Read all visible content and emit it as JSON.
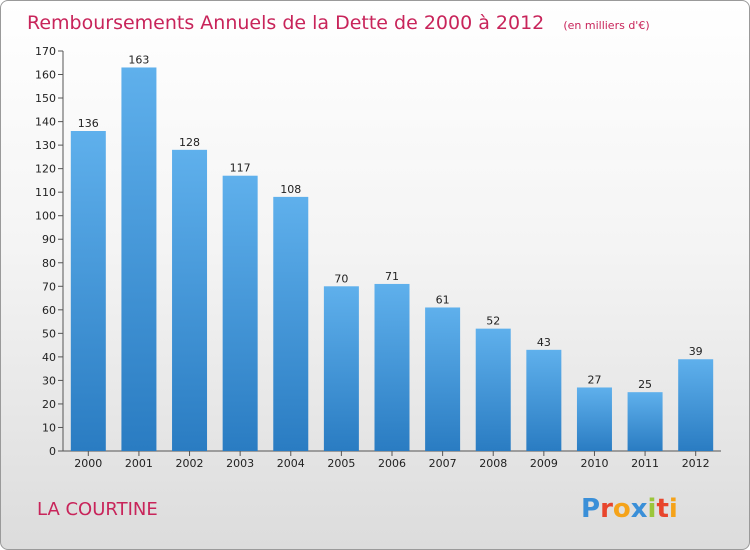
{
  "chart_data": {
    "type": "bar",
    "title": "Remboursements Annuels de la Dette de 2000 à 2012",
    "unit": "(en milliers d'€)",
    "categories": [
      "2000",
      "2001",
      "2002",
      "2003",
      "2004",
      "2005",
      "2006",
      "2007",
      "2008",
      "2009",
      "2010",
      "2011",
      "2012"
    ],
    "values": [
      136,
      163,
      128,
      117,
      108,
      70,
      71,
      61,
      52,
      43,
      27,
      25,
      39
    ],
    "ylim": [
      0,
      170
    ],
    "yticks": [
      0,
      10,
      20,
      30,
      40,
      50,
      60,
      70,
      80,
      90,
      100,
      110,
      120,
      130,
      140,
      150,
      160,
      170
    ],
    "grid": false,
    "bar_color": "#3a93d8"
  },
  "commune": "LA COURTINE",
  "logo": {
    "text": "Proxiti",
    "letter_colors": [
      "#3a8fd8",
      "#e8452c",
      "#f5a31a",
      "#3a8fd8",
      "#9bc63b",
      "#e8452c",
      "#f5a31a"
    ]
  },
  "colors": {
    "accent": "#c8245a"
  }
}
